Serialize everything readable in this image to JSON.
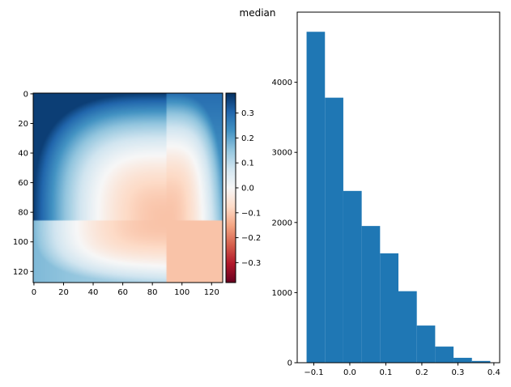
{
  "figure": {
    "title": "median"
  },
  "chart_data": [
    {
      "type": "heatmap",
      "title": "",
      "xlabel": "",
      "ylabel": "",
      "rows": 128,
      "cols": 128,
      "xlim": [
        0,
        127
      ],
      "ylim": [
        127,
        0
      ],
      "x_ticks": [
        "0",
        "20",
        "40",
        "60",
        "80",
        "100",
        "120"
      ],
      "x_tick_values": [
        0,
        20,
        40,
        60,
        80,
        100,
        120
      ],
      "y_ticks": [
        "0",
        "20",
        "40",
        "60",
        "80",
        "100",
        "120"
      ],
      "y_tick_values": [
        0,
        20,
        40,
        60,
        80,
        100,
        120
      ],
      "colormap": "RdBu",
      "value_range": [
        -0.38,
        0.38
      ],
      "field_summary": {
        "corner_top_left": 0.36,
        "corner_top_right": 0.29,
        "corner_bottom_left": 0.17,
        "minimum_value": -0.11,
        "minimum_location_xy": [
          90,
          86
        ]
      },
      "colorbar": {
        "ticks": [
          "0.3",
          "0.2",
          "0.1",
          "0.0",
          "−0.1",
          "−0.2",
          "−0.3"
        ],
        "tick_values": [
          0.3,
          0.2,
          0.1,
          0.0,
          -0.1,
          -0.2,
          -0.3
        ]
      }
    },
    {
      "type": "bar",
      "subtype": "histogram",
      "title": "",
      "xlabel": "",
      "ylabel": "",
      "color": "#1f77b4",
      "bin_edges": [
        -0.12,
        -0.069,
        -0.018,
        0.033,
        0.084,
        0.135,
        0.186,
        0.237,
        0.288,
        0.339,
        0.39
      ],
      "values": [
        4720,
        3780,
        2450,
        1950,
        1560,
        1020,
        530,
        230,
        70,
        25
      ],
      "xlim": [
        -0.146,
        0.416
      ],
      "ylim": [
        0,
        5000
      ],
      "x_ticks": [
        "−0.1",
        "0.0",
        "0.1",
        "0.2",
        "0.3",
        "0.4"
      ],
      "x_tick_values": [
        -0.1,
        0.0,
        0.1,
        0.2,
        0.3,
        0.4
      ],
      "y_ticks": [
        "0",
        "1000",
        "2000",
        "3000",
        "4000"
      ],
      "y_tick_values": [
        0,
        1000,
        2000,
        3000,
        4000
      ]
    }
  ]
}
